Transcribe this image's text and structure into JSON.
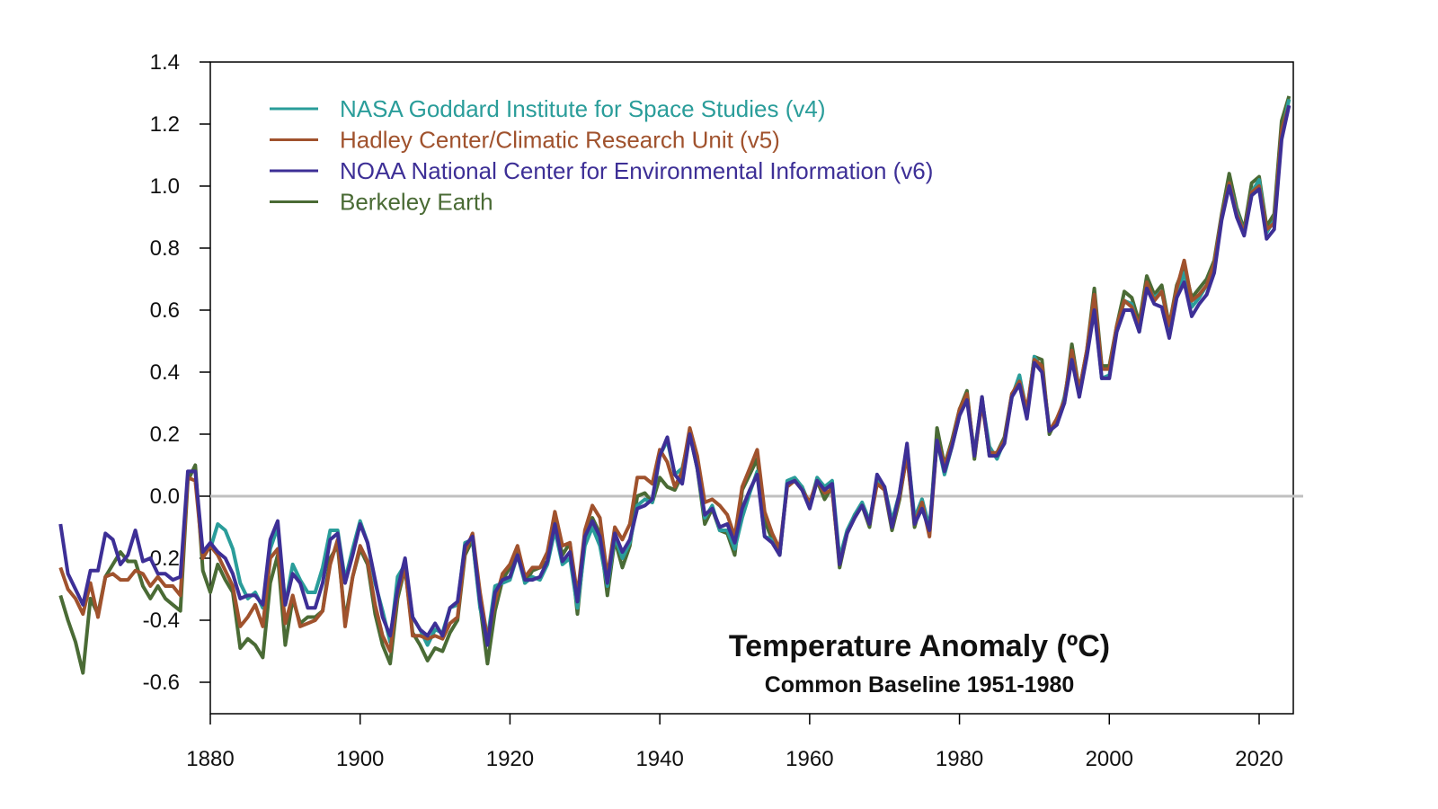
{
  "chart_data": {
    "type": "line",
    "title": "Temperature Anomaly (ºC)",
    "subtitle": "Common Baseline 1951-1980",
    "xlabel": "",
    "ylabel": "",
    "xlim": [
      1860,
      2026
    ],
    "ylim": [
      -0.7,
      1.4
    ],
    "xticks": [
      1880,
      1900,
      1920,
      1940,
      1960,
      1980,
      2000,
      2020
    ],
    "xtick_labels": [
      "1880",
      "1900",
      "1920",
      "1940",
      "1960",
      "1980",
      "2000",
      "2020"
    ],
    "yticks": [
      -0.6,
      -0.4,
      -0.2,
      0.0,
      0.2,
      0.4,
      0.6,
      0.8,
      1.0,
      1.2,
      1.4
    ],
    "ytick_labels": [
      "-0.6",
      "-0.4",
      "-0.2",
      "0.0",
      "0.2",
      "0.4",
      "0.6",
      "0.8",
      "1.0",
      "1.2",
      "1.4"
    ],
    "zero_line": 0.0,
    "grid": false,
    "legend_position": "top-left",
    "colors": {
      "zero_line": "#c0c0c0",
      "axis": "#000000"
    },
    "series": [
      {
        "name": "NASA Goddard Institute for Space Studies (v4)",
        "color": "#2a9d9a",
        "x_start": 1880,
        "values": [
          -0.17,
          -0.09,
          -0.11,
          -0.17,
          -0.28,
          -0.33,
          -0.31,
          -0.36,
          -0.17,
          -0.1,
          -0.35,
          -0.22,
          -0.27,
          -0.31,
          -0.31,
          -0.23,
          -0.11,
          -0.11,
          -0.27,
          -0.17,
          -0.08,
          -0.15,
          -0.28,
          -0.37,
          -0.47,
          -0.26,
          -0.22,
          -0.39,
          -0.43,
          -0.48,
          -0.43,
          -0.44,
          -0.36,
          -0.35,
          -0.15,
          -0.14,
          -0.36,
          -0.46,
          -0.29,
          -0.28,
          -0.27,
          -0.19,
          -0.28,
          -0.26,
          -0.27,
          -0.22,
          -0.11,
          -0.22,
          -0.2,
          -0.36,
          -0.16,
          -0.1,
          -0.16,
          -0.29,
          -0.13,
          -0.2,
          -0.15,
          -0.03,
          -0.01,
          -0.02,
          0.13,
          0.18,
          0.07,
          0.09,
          0.2,
          0.09,
          -0.07,
          -0.03,
          -0.11,
          -0.11,
          -0.17,
          -0.07,
          0.01,
          0.08,
          -0.13,
          -0.14,
          -0.19,
          0.05,
          0.06,
          0.03,
          -0.03,
          0.06,
          0.03,
          0.05,
          -0.2,
          -0.11,
          -0.06,
          -0.02,
          -0.08,
          0.05,
          0.03,
          -0.08,
          0.01,
          0.16,
          -0.07,
          -0.01,
          -0.1,
          0.18,
          0.07,
          0.16,
          0.26,
          0.32,
          0.14,
          0.31,
          0.16,
          0.12,
          0.18,
          0.32,
          0.39,
          0.27,
          0.45,
          0.41,
          0.22,
          0.23,
          0.32,
          0.45,
          0.33,
          0.46,
          0.61,
          0.38,
          0.39,
          0.54,
          0.63,
          0.62,
          0.53,
          0.68,
          0.64,
          0.66,
          0.54,
          0.65,
          0.72,
          0.61,
          0.64,
          0.68,
          0.75,
          0.9,
          1.01,
          0.92,
          0.85,
          0.98,
          1.02,
          0.85,
          0.89,
          1.17,
          1.28
        ]
      },
      {
        "name": "Hadley Center/Climatic Research Unit (v5)",
        "color": "#a0522d",
        "x_start": 1860,
        "values": [
          -0.23,
          -0.3,
          -0.33,
          -0.38,
          -0.28,
          -0.39,
          -0.26,
          -0.25,
          -0.27,
          -0.27,
          -0.24,
          -0.25,
          -0.29,
          -0.26,
          -0.29,
          -0.29,
          -0.32,
          0.06,
          0.05,
          -0.2,
          -0.16,
          -0.19,
          -0.24,
          -0.29,
          -0.42,
          -0.39,
          -0.35,
          -0.42,
          -0.2,
          -0.17,
          -0.41,
          -0.32,
          -0.42,
          -0.41,
          -0.4,
          -0.37,
          -0.22,
          -0.14,
          -0.42,
          -0.26,
          -0.16,
          -0.21,
          -0.35,
          -0.45,
          -0.5,
          -0.31,
          -0.23,
          -0.45,
          -0.45,
          -0.46,
          -0.45,
          -0.46,
          -0.41,
          -0.39,
          -0.18,
          -0.12,
          -0.31,
          -0.46,
          -0.34,
          -0.25,
          -0.22,
          -0.16,
          -0.26,
          -0.23,
          -0.23,
          -0.18,
          -0.05,
          -0.16,
          -0.15,
          -0.32,
          -0.11,
          -0.03,
          -0.07,
          -0.26,
          -0.1,
          -0.14,
          -0.09,
          0.06,
          0.06,
          0.04,
          0.15,
          0.11,
          0.03,
          0.08,
          0.22,
          0.13,
          -0.02,
          -0.01,
          -0.03,
          -0.06,
          -0.13,
          0.03,
          0.09,
          0.15,
          -0.05,
          -0.12,
          -0.17,
          0.03,
          0.05,
          0.02,
          -0.02,
          0.05,
          0.01,
          0.02,
          -0.22,
          -0.12,
          -0.07,
          -0.03,
          -0.09,
          0.04,
          0.02,
          -0.1,
          0.0,
          0.13,
          -0.09,
          -0.02,
          -0.13,
          0.18,
          0.1,
          0.17,
          0.28,
          0.33,
          0.13,
          0.3,
          0.14,
          0.14,
          0.18,
          0.33,
          0.37,
          0.28,
          0.44,
          0.42,
          0.21,
          0.25,
          0.31,
          0.47,
          0.34,
          0.47,
          0.65,
          0.41,
          0.41,
          0.55,
          0.63,
          0.61,
          0.55,
          0.69,
          0.63,
          0.66,
          0.55,
          0.67,
          0.76,
          0.63,
          0.65,
          0.68,
          0.75,
          0.9,
          1.01,
          0.91,
          0.85,
          0.98,
          1.0,
          0.86,
          0.88,
          1.18,
          1.26
        ]
      },
      {
        "name": "NOAA National Center for Environmental Information (v6)",
        "color": "#3d2f96",
        "x_start": 1860,
        "values": [
          -0.09,
          -0.25,
          -0.3,
          -0.35,
          -0.24,
          -0.24,
          -0.12,
          -0.14,
          -0.22,
          -0.19,
          -0.11,
          -0.21,
          -0.2,
          -0.25,
          -0.25,
          -0.27,
          -0.26,
          0.08,
          0.08,
          -0.18,
          -0.15,
          -0.18,
          -0.2,
          -0.25,
          -0.33,
          -0.32,
          -0.32,
          -0.35,
          -0.14,
          -0.08,
          -0.35,
          -0.25,
          -0.28,
          -0.36,
          -0.36,
          -0.28,
          -0.14,
          -0.12,
          -0.28,
          -0.19,
          -0.09,
          -0.15,
          -0.27,
          -0.39,
          -0.45,
          -0.3,
          -0.2,
          -0.39,
          -0.43,
          -0.45,
          -0.41,
          -0.45,
          -0.36,
          -0.34,
          -0.16,
          -0.13,
          -0.34,
          -0.48,
          -0.31,
          -0.27,
          -0.26,
          -0.19,
          -0.27,
          -0.27,
          -0.26,
          -0.21,
          -0.09,
          -0.21,
          -0.18,
          -0.34,
          -0.13,
          -0.08,
          -0.13,
          -0.28,
          -0.12,
          -0.18,
          -0.14,
          -0.04,
          -0.03,
          -0.01,
          0.13,
          0.19,
          0.07,
          0.04,
          0.2,
          0.09,
          -0.06,
          -0.04,
          -0.1,
          -0.09,
          -0.15,
          -0.04,
          0.02,
          0.07,
          -0.13,
          -0.15,
          -0.19,
          0.04,
          0.05,
          0.02,
          -0.04,
          0.05,
          0.02,
          0.04,
          -0.22,
          -0.12,
          -0.07,
          -0.03,
          -0.09,
          0.07,
          0.03,
          -0.1,
          0.01,
          0.17,
          -0.09,
          -0.04,
          -0.11,
          0.18,
          0.08,
          0.16,
          0.26,
          0.31,
          0.13,
          0.32,
          0.13,
          0.13,
          0.17,
          0.32,
          0.36,
          0.25,
          0.43,
          0.4,
          0.21,
          0.23,
          0.3,
          0.44,
          0.32,
          0.45,
          0.6,
          0.38,
          0.38,
          0.53,
          0.6,
          0.6,
          0.53,
          0.67,
          0.62,
          0.61,
          0.51,
          0.64,
          0.69,
          0.58,
          0.62,
          0.65,
          0.72,
          0.89,
          1.0,
          0.9,
          0.84,
          0.97,
          0.99,
          0.83,
          0.86,
          1.15,
          1.26
        ]
      },
      {
        "name": "Berkeley Earth",
        "color": "#4a6b35",
        "x_start": 1860,
        "values": [
          -0.32,
          -0.4,
          -0.47,
          -0.57,
          -0.33,
          -0.38,
          -0.26,
          -0.22,
          -0.18,
          -0.21,
          -0.21,
          -0.29,
          -0.33,
          -0.29,
          -0.33,
          -0.35,
          -0.37,
          0.05,
          0.1,
          -0.24,
          -0.31,
          -0.22,
          -0.27,
          -0.31,
          -0.49,
          -0.46,
          -0.48,
          -0.52,
          -0.28,
          -0.19,
          -0.48,
          -0.33,
          -0.41,
          -0.39,
          -0.39,
          -0.37,
          -0.2,
          -0.16,
          -0.4,
          -0.26,
          -0.17,
          -0.22,
          -0.38,
          -0.48,
          -0.54,
          -0.33,
          -0.23,
          -0.44,
          -0.48,
          -0.53,
          -0.49,
          -0.5,
          -0.44,
          -0.4,
          -0.19,
          -0.14,
          -0.35,
          -0.54,
          -0.37,
          -0.27,
          -0.23,
          -0.17,
          -0.28,
          -0.24,
          -0.23,
          -0.21,
          -0.08,
          -0.19,
          -0.15,
          -0.38,
          -0.14,
          -0.07,
          -0.12,
          -0.32,
          -0.14,
          -0.23,
          -0.16,
          0.0,
          0.01,
          -0.02,
          0.06,
          0.03,
          0.02,
          0.07,
          0.2,
          0.09,
          -0.09,
          -0.04,
          -0.11,
          -0.12,
          -0.19,
          0.02,
          0.07,
          0.12,
          -0.08,
          -0.14,
          -0.19,
          0.04,
          0.05,
          0.03,
          -0.03,
          0.05,
          -0.01,
          0.03,
          -0.23,
          -0.12,
          -0.06,
          -0.03,
          -0.1,
          0.06,
          0.02,
          -0.11,
          -0.01,
          0.14,
          -0.1,
          -0.01,
          -0.12,
          0.22,
          0.1,
          0.18,
          0.28,
          0.34,
          0.12,
          0.32,
          0.13,
          0.14,
          0.19,
          0.33,
          0.36,
          0.26,
          0.45,
          0.44,
          0.2,
          0.25,
          0.3,
          0.49,
          0.34,
          0.47,
          0.67,
          0.42,
          0.42,
          0.55,
          0.66,
          0.64,
          0.56,
          0.71,
          0.65,
          0.68,
          0.55,
          0.68,
          0.74,
          0.64,
          0.67,
          0.7,
          0.76,
          0.91,
          1.04,
          0.93,
          0.86,
          1.01,
          1.03,
          0.87,
          0.91,
          1.21,
          1.29
        ]
      }
    ]
  }
}
